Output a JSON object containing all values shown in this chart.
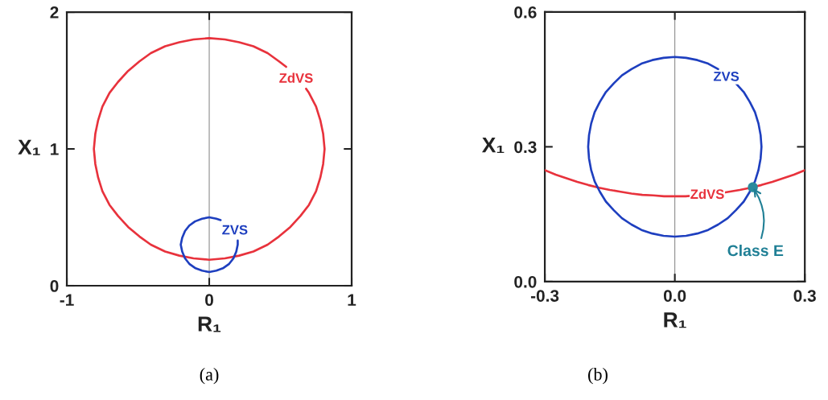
{
  "chart_data": [
    {
      "type": "line",
      "title": "(a)",
      "xlabel": "R₁",
      "ylabel": "X₁",
      "xlim": [
        -1,
        1
      ],
      "ylim": [
        0,
        2
      ],
      "xticks": [
        -1,
        0,
        1
      ],
      "yticks": [
        0,
        1,
        2
      ],
      "line_style": "solid",
      "ref_lines": [
        {
          "axis": "x",
          "value": 0,
          "color": "#8c8c8c"
        }
      ],
      "series": [
        {
          "name": "ZdVS",
          "color": "#e8323c",
          "x": [
            0.54,
            0.49,
            0.41,
            0.31,
            0.21,
            0.11,
            0,
            -0.11,
            -0.21,
            -0.31,
            -0.41,
            -0.49,
            -0.57,
            -0.64,
            -0.7,
            -0.75,
            -0.78,
            -0.8,
            -0.81,
            -0.8,
            -0.78,
            -0.75,
            -0.7,
            -0.64,
            -0.57,
            -0.49,
            -0.41,
            -0.31,
            -0.21,
            -0.11,
            0,
            0.11,
            0.21,
            0.31,
            0.41,
            0.49,
            0.57,
            0.64,
            0.7,
            0.75,
            0.78,
            0.8,
            0.81,
            0.8,
            0.78,
            0.75,
            0.7,
            0.68
          ],
          "values": [
            1.6,
            1.64,
            1.7,
            1.75,
            1.78,
            1.8,
            1.81,
            1.8,
            1.78,
            1.75,
            1.7,
            1.64,
            1.57,
            1.49,
            1.41,
            1.31,
            1.21,
            1.11,
            1,
            0.89,
            0.79,
            0.69,
            0.59,
            0.51,
            0.43,
            0.36,
            0.3,
            0.25,
            0.22,
            0.2,
            0.19,
            0.2,
            0.22,
            0.25,
            0.3,
            0.36,
            0.43,
            0.51,
            0.59,
            0.69,
            0.79,
            0.89,
            1,
            1.11,
            1.21,
            1.31,
            1.41,
            1.44
          ]
        },
        {
          "name": "ZVS",
          "color": "#1e3fbf",
          "x": [
            0.08,
            0.05,
            0,
            -0.05,
            -0.1,
            -0.14,
            -0.17,
            -0.19,
            -0.2,
            -0.19,
            -0.17,
            -0.14,
            -0.1,
            -0.05,
            0,
            0.05,
            0.1,
            0.14,
            0.17,
            0.19,
            0.2,
            0.2
          ],
          "values": [
            0.48,
            0.49,
            0.5,
            0.49,
            0.47,
            0.44,
            0.4,
            0.35,
            0.3,
            0.25,
            0.2,
            0.16,
            0.13,
            0.11,
            0.1,
            0.11,
            0.13,
            0.16,
            0.2,
            0.25,
            0.3,
            0.33
          ]
        }
      ]
    },
    {
      "type": "line",
      "title": "(b)",
      "xlabel": "R₁",
      "ylabel": "X₁",
      "xlim": [
        -0.3,
        0.3
      ],
      "ylim": [
        0,
        0.6
      ],
      "xticks": [
        -0.3,
        {
          "value": 0,
          "label": "0.0"
        },
        0.3
      ],
      "yticks": [
        {
          "value": 0,
          "label": "0.0"
        },
        0.3,
        0.6
      ],
      "line_style": "solid",
      "ref_lines": [
        {
          "axis": "x",
          "value": 0,
          "color": "#8c8c8c"
        }
      ],
      "annotations": [
        {
          "text": "Class E",
          "x": 0.18,
          "y": 0.21
        }
      ],
      "series": [
        {
          "name": "ZdVS",
          "color": "#e8323c",
          "x": [
            -0.3,
            -0.275,
            -0.25,
            -0.225,
            -0.2,
            -0.175,
            -0.15,
            -0.125,
            -0.1,
            -0.075,
            -0.05,
            -0.025,
            0,
            0.025,
            0.05,
            0.075,
            0.1,
            0.125,
            0.15,
            0.175,
            0.2,
            0.225,
            0.25,
            0.275,
            0.3
          ],
          "values": [
            0.248,
            0.238,
            0.23,
            0.222,
            0.215,
            0.209,
            0.204,
            0.2,
            0.196,
            0.193,
            0.192,
            0.19,
            0.19,
            0.19,
            0.192,
            0.193,
            0.196,
            0.2,
            0.204,
            0.209,
            0.215,
            0.222,
            0.23,
            0.238,
            0.248
          ]
        },
        {
          "name": "ZVS",
          "color": "#1e3fbf",
          "x": [
            0.1,
            0.077,
            0.052,
            0.026,
            0,
            -0.026,
            -0.052,
            -0.077,
            -0.1,
            -0.122,
            -0.141,
            -0.159,
            -0.173,
            -0.185,
            -0.193,
            -0.198,
            -0.2,
            -0.198,
            -0.193,
            -0.185,
            -0.173,
            -0.159,
            -0.141,
            -0.122,
            -0.1,
            -0.077,
            -0.052,
            -0.026,
            0,
            0.026,
            0.052,
            0.077,
            0.1,
            0.122,
            0.141,
            0.159,
            0.173,
            0.185,
            0.193,
            0.198,
            0.2,
            0.198,
            0.193,
            0.185,
            0.173,
            0.159,
            0.141
          ],
          "values": [
            0.473,
            0.485,
            0.493,
            0.498,
            0.5,
            0.498,
            0.493,
            0.485,
            0.473,
            0.459,
            0.441,
            0.422,
            0.4,
            0.377,
            0.352,
            0.326,
            0.3,
            0.274,
            0.248,
            0.223,
            0.2,
            0.178,
            0.159,
            0.141,
            0.127,
            0.115,
            0.107,
            0.102,
            0.1,
            0.102,
            0.107,
            0.115,
            0.127,
            0.141,
            0.159,
            0.178,
            0.2,
            0.223,
            0.248,
            0.274,
            0.3,
            0.326,
            0.352,
            0.377,
            0.4,
            0.422,
            0.441
          ]
        },
        {
          "type": "scatter",
          "color": "#2a8a9c",
          "marker": "circle",
          "x": [
            0.18
          ],
          "values": [
            0.21
          ]
        }
      ]
    }
  ]
}
